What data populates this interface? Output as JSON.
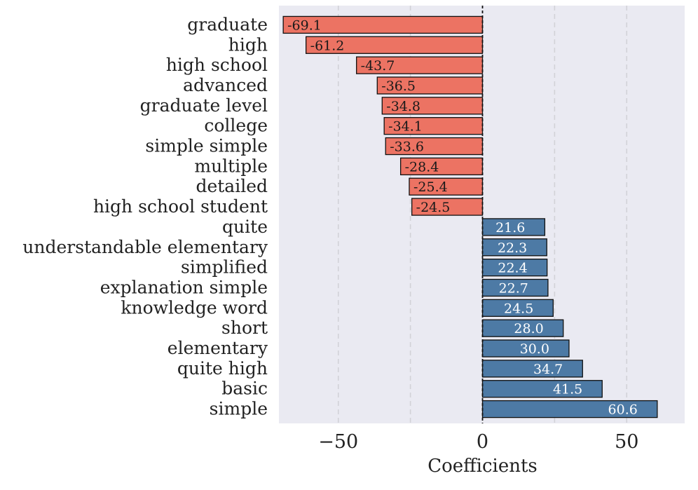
{
  "chart_data": {
    "type": "bar",
    "orientation": "horizontal",
    "xlabel": "Coefficients",
    "ylabel": "",
    "title": "",
    "xlim": [
      -70,
      70
    ],
    "xticks": [
      {
        "value": -50,
        "label": "−50"
      },
      {
        "value": 0,
        "label": "0"
      },
      {
        "value": 50,
        "label": "50"
      }
    ],
    "grid": true,
    "grid_values": [
      -50,
      -25,
      0,
      25,
      50
    ],
    "zero_line": true,
    "colors": {
      "negative": "#ec7363",
      "positive": "#4d7aa5",
      "plot_background": "#eaeaf2",
      "grid": "#d2d2d8",
      "negative_label_text": "#1a1a1a",
      "positive_label_text": "#ffffff"
    },
    "bars": [
      {
        "label": "graduate",
        "value": -69.1,
        "text": "-69.1"
      },
      {
        "label": "high",
        "value": -61.2,
        "text": "-61.2"
      },
      {
        "label": "high school",
        "value": -43.7,
        "text": "-43.7"
      },
      {
        "label": "advanced",
        "value": -36.5,
        "text": "-36.5"
      },
      {
        "label": "graduate level",
        "value": -34.8,
        "text": "-34.8"
      },
      {
        "label": "college",
        "value": -34.1,
        "text": "-34.1"
      },
      {
        "label": "simple simple",
        "value": -33.6,
        "text": "-33.6"
      },
      {
        "label": "multiple",
        "value": -28.4,
        "text": "-28.4"
      },
      {
        "label": "detailed",
        "value": -25.4,
        "text": "-25.4"
      },
      {
        "label": "high school student",
        "value": -24.5,
        "text": "-24.5"
      },
      {
        "label": "quite",
        "value": 21.6,
        "text": "21.6"
      },
      {
        "label": "understandable elementary",
        "value": 22.3,
        "text": "22.3"
      },
      {
        "label": "simplified",
        "value": 22.4,
        "text": "22.4"
      },
      {
        "label": "explanation simple",
        "value": 22.7,
        "text": "22.7"
      },
      {
        "label": "knowledge word",
        "value": 24.5,
        "text": "24.5"
      },
      {
        "label": "short",
        "value": 28.0,
        "text": "28.0"
      },
      {
        "label": "elementary",
        "value": 30.0,
        "text": "30.0"
      },
      {
        "label": "quite high",
        "value": 34.7,
        "text": "34.7"
      },
      {
        "label": "basic",
        "value": 41.5,
        "text": "41.5"
      },
      {
        "label": "simple",
        "value": 60.6,
        "text": "60.6"
      }
    ]
  }
}
